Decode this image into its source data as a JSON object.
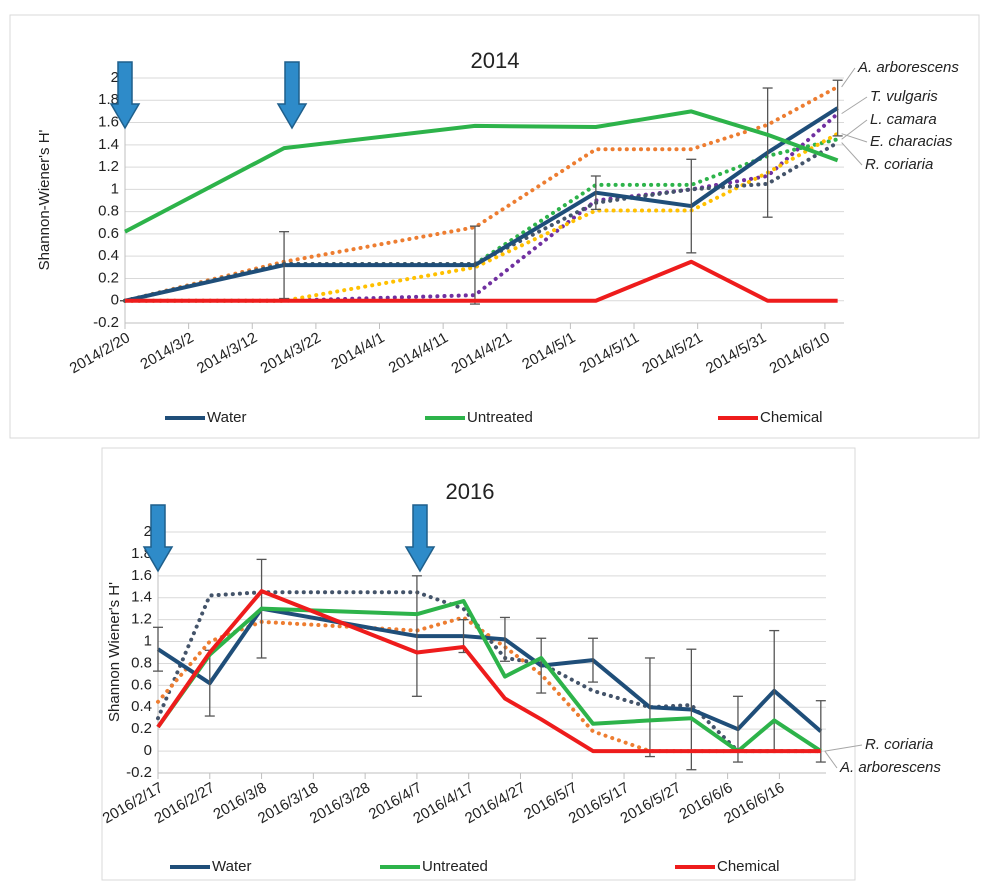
{
  "chart_data": [
    {
      "type": "line",
      "title": "2014",
      "y_label": "Shannon-Wiener's H'",
      "x": [
        "2014/2/20",
        "2014/3/17",
        "2014/4/16",
        "2014/5/5",
        "2014/5/20",
        "2014/6/1",
        "2014/6/12"
      ],
      "xlim": [
        "2014/2/20",
        "2014/6/13"
      ],
      "xticks": [
        "2014/2/20",
        "2014/3/2",
        "2014/3/12",
        "2014/3/22",
        "2014/4/1",
        "2014/4/11",
        "2014/4/21",
        "2014/5/1",
        "2014/5/11",
        "2014/5/21",
        "2014/5/31",
        "2014/6/10"
      ],
      "ylim": [
        -0.2,
        2
      ],
      "yticks": [
        -0.2,
        0,
        0.2,
        0.4,
        0.6,
        0.8,
        1,
        1.2,
        1.4,
        1.6,
        1.8,
        2
      ],
      "grid": true,
      "series": [
        {
          "name": "Water",
          "color": "#1f4e79",
          "style": "solid",
          "values": [
            0,
            0.32,
            0.32,
            0.97,
            0.85,
            1.33,
            1.73
          ],
          "errors": [
            0,
            0.3,
            0.35,
            0.15,
            0.42,
            0.58,
            0.25
          ]
        },
        {
          "name": "Untreated",
          "color": "#2db34a",
          "style": "solid",
          "values": [
            0.62,
            1.37,
            1.57,
            1.56,
            1.7,
            1.49,
            1.26
          ]
        },
        {
          "name": "Chemical",
          "color": "#ee1c1c",
          "style": "solid",
          "values": [
            0,
            0,
            0,
            0,
            0.35,
            0,
            0
          ]
        },
        {
          "name": "A. arborescens",
          "color": "#ed7d31",
          "style": "dotted",
          "values": [
            0,
            0.35,
            0.66,
            1.36,
            1.36,
            1.58,
            1.92
          ]
        },
        {
          "name": "T. vulgaris",
          "color": "#7030a0",
          "style": "dotted",
          "values": [
            0,
            0,
            0.05,
            0.9,
            1.0,
            1.12,
            1.68
          ]
        },
        {
          "name": "L. camara",
          "color": "#2db34a",
          "style": "dotted",
          "values": [
            0,
            0.33,
            0.33,
            1.04,
            1.04,
            1.3,
            1.45
          ]
        },
        {
          "name": "E. characias",
          "color": "#ffc000",
          "style": "dotted",
          "values": [
            0,
            0,
            0.3,
            0.81,
            0.81,
            1.15,
            1.5
          ]
        },
        {
          "name": "R. coriaria",
          "color": "#44546a",
          "style": "dotted",
          "values": [
            0,
            0.33,
            0.33,
            0.88,
            1.0,
            1.05,
            1.42
          ]
        }
      ]
    },
    {
      "type": "line",
      "title": "2016",
      "y_label": "Shannon Wiener's H'",
      "x": [
        "2016/2/17",
        "2016/2/27",
        "2016/3/8",
        "2016/4/7",
        "2016/4/16",
        "2016/4/24",
        "2016/5/1",
        "2016/5/11",
        "2016/5/22",
        "2016/5/30",
        "2016/6/8",
        "2016/6/15",
        "2016/6/24"
      ],
      "xlim": [
        "2016/2/17",
        "2016/6/25"
      ],
      "xticks": [
        "2016/2/17",
        "2016/2/27",
        "2016/3/8",
        "2016/3/18",
        "2016/3/28",
        "2016/4/7",
        "2016/4/17",
        "2016/4/27",
        "2016/5/7",
        "2016/5/17",
        "2016/5/27",
        "2016/6/6",
        "2016/6/16"
      ],
      "ylim": [
        -0.2,
        2
      ],
      "yticks": [
        -0.2,
        0,
        0.2,
        0.4,
        0.6,
        0.8,
        1,
        1.2,
        1.4,
        1.6,
        1.8,
        2
      ],
      "grid": true,
      "series": [
        {
          "name": "Water",
          "color": "#1f4e79",
          "style": "solid",
          "values": [
            0.93,
            0.62,
            1.3,
            1.05,
            1.05,
            1.02,
            0.78,
            0.83,
            0.4,
            0.38,
            0.2,
            0.55,
            0.18
          ],
          "errors": [
            0.2,
            0.3,
            0.45,
            0.55,
            0.15,
            0.2,
            0.25,
            0.2,
            0.45,
            0.55,
            0.3,
            0.55,
            0.28
          ]
        },
        {
          "name": "Untreated",
          "color": "#2db34a",
          "style": "solid",
          "values": [
            0.22,
            0.88,
            1.3,
            1.25,
            1.37,
            0.68,
            0.85,
            0.25,
            0.28,
            0.3,
            0,
            0.28,
            0
          ]
        },
        {
          "name": "Chemical",
          "color": "#ee1c1c",
          "style": "solid",
          "values": [
            0.22,
            0.9,
            1.46,
            0.9,
            0.95,
            0.48,
            0.29,
            0,
            0,
            0,
            0,
            0,
            0
          ]
        },
        {
          "name": "R. coriaria",
          "color": "#44546a",
          "style": "dotted",
          "values": [
            0.3,
            1.42,
            1.45,
            1.45,
            1.3,
            0.85,
            0.8,
            0.55,
            0.4,
            0.42,
            0,
            0,
            0
          ]
        },
        {
          "name": "A. arborescens",
          "color": "#ed7d31",
          "style": "dotted",
          "values": [
            0.45,
            1.0,
            1.18,
            1.1,
            1.22,
            0.95,
            0.7,
            0.18,
            0,
            0,
            0,
            0,
            0
          ]
        }
      ]
    }
  ]
}
